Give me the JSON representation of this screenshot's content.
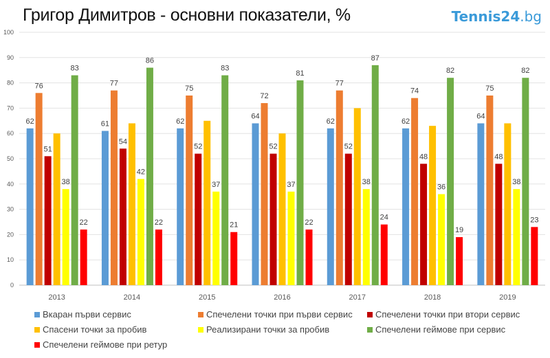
{
  "chart_data": {
    "type": "bar",
    "title": "Григор Димитров - основни показатели, %",
    "xlabel": "",
    "ylabel": "",
    "ylim": [
      0,
      100
    ],
    "yticks": [
      0,
      10,
      20,
      30,
      40,
      50,
      60,
      70,
      80,
      90,
      100
    ],
    "grid": true,
    "legend_position": "bottom",
    "categories": [
      "2013",
      "2014",
      "2015",
      "2016",
      "2017",
      "2018",
      "2019"
    ],
    "series": [
      {
        "name": "Вкаран първи сервис",
        "color": "#5b9bd5",
        "labeled": true,
        "values": [
          62,
          61,
          62,
          64,
          62,
          62,
          64
        ]
      },
      {
        "name": "Спечелени точки при първи сервис",
        "color": "#ed7d31",
        "labeled": true,
        "values": [
          76,
          77,
          75,
          72,
          77,
          74,
          75
        ]
      },
      {
        "name": "Спечелени точки при втори сервис",
        "color": "#c00000",
        "labeled": true,
        "values": [
          51,
          54,
          52,
          52,
          52,
          48,
          48
        ]
      },
      {
        "name": "Спасени точки за пробив",
        "color": "#ffc000",
        "labeled": false,
        "values": [
          60,
          64,
          65,
          60,
          70,
          63,
          64
        ]
      },
      {
        "name": "Реализирани точки за пробив",
        "color": "#ffff00",
        "labeled": true,
        "values": [
          38,
          42,
          37,
          37,
          38,
          36,
          38
        ]
      },
      {
        "name": "Спечелени геймове при сервис",
        "color": "#70ad47",
        "labeled": true,
        "values": [
          83,
          86,
          83,
          81,
          87,
          82,
          82
        ]
      },
      {
        "name": "Спечелени геймове при ретур",
        "color": "#ff0000",
        "labeled": true,
        "values": [
          22,
          22,
          21,
          22,
          24,
          19,
          23
        ]
      }
    ]
  },
  "logo": {
    "main": "Tennis24",
    "suffix": ".bg"
  }
}
